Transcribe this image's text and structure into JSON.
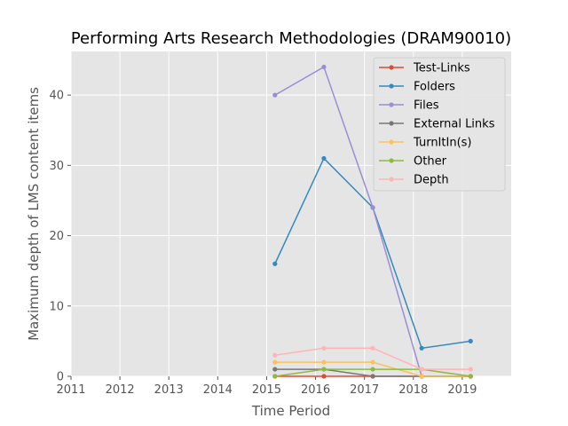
{
  "chart_data": {
    "type": "line",
    "title": "Performing Arts Research Methodologies (DRAM90010)",
    "xlabel": "Time Period",
    "ylabel": "Maximum depth of LMS content items",
    "xlim": [
      2011,
      2020
    ],
    "ylim": [
      0,
      46.2
    ],
    "xticks": [
      "2011",
      "2012",
      "2013",
      "2014",
      "2015",
      "2016",
      "2017",
      "2018",
      "2019"
    ],
    "yticks": [
      "0",
      "10",
      "20",
      "30",
      "40"
    ],
    "grid": true,
    "legend_position": "top-right",
    "x": [
      2015.17,
      2016.17,
      2017.17,
      2018.17,
      2019.17
    ],
    "series": [
      {
        "name": "Test-Links",
        "color": "#E24A33",
        "values": [
          0,
          0,
          0,
          0,
          0
        ]
      },
      {
        "name": "Folders",
        "color": "#348ABD",
        "values": [
          16,
          31,
          24,
          4,
          5
        ]
      },
      {
        "name": "Files",
        "color": "#988ED5",
        "values": [
          40,
          44,
          24,
          0,
          0
        ]
      },
      {
        "name": "External Links",
        "color": "#777777",
        "values": [
          1,
          1,
          0,
          0,
          0
        ]
      },
      {
        "name": "TurnItIn(s)",
        "color": "#FBC15E",
        "values": [
          2,
          2,
          2,
          0,
          0
        ]
      },
      {
        "name": "Other",
        "color": "#8EBA42",
        "values": [
          0,
          1,
          1,
          1,
          0
        ]
      },
      {
        "name": "Depth",
        "color": "#FFB5B8",
        "values": [
          3,
          4,
          4,
          1,
          1
        ]
      }
    ]
  }
}
